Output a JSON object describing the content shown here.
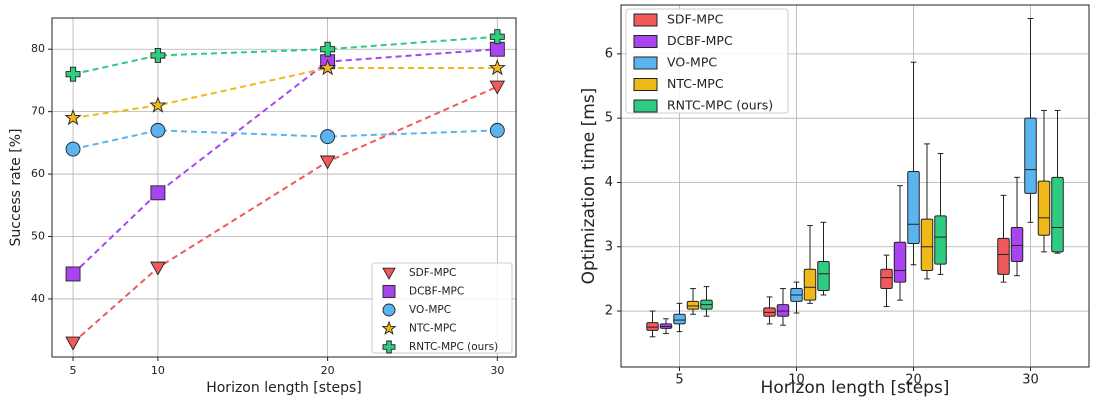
{
  "chart_data": [
    {
      "type": "line",
      "xlabel": "Horizon length [steps]",
      "ylabel": "Success rate [%]",
      "x": [
        5,
        10,
        20,
        30
      ],
      "xlim": [
        3.76,
        31.1
      ],
      "xticks": [
        5,
        10,
        20,
        30
      ],
      "ylim": [
        30.7,
        85
      ],
      "yticks": [
        40,
        50,
        60,
        70,
        80
      ],
      "grid": true,
      "legend": "lower right",
      "series": [
        {
          "name": "SDF-MPC",
          "color": "#f05a5a",
          "marker": "triangle-down",
          "values": [
            33,
            45,
            62,
            74
          ]
        },
        {
          "name": "DCBF-MPC",
          "color": "#a845f0",
          "marker": "square",
          "values": [
            44,
            57,
            78,
            80
          ]
        },
        {
          "name": "VO-MPC",
          "color": "#5ab4f0",
          "marker": "circle",
          "values": [
            64,
            67,
            66,
            67
          ]
        },
        {
          "name": "NTC-MPC",
          "color": "#f0b818",
          "marker": "star",
          "values": [
            69,
            71,
            77,
            77
          ]
        },
        {
          "name": "RNTC-MPC (ours)",
          "color": "#2ecc80",
          "marker": "plus",
          "values": [
            76,
            79,
            80,
            82
          ]
        }
      ]
    },
    {
      "type": "box",
      "xlabel": "Horizon length [steps]",
      "ylabel": "Optimization time [ms]",
      "categories": [
        "5",
        "10",
        "20",
        "30"
      ],
      "ylim": [
        1.13,
        6.76
      ],
      "yticks": [
        2,
        3,
        4,
        5,
        6
      ],
      "grid": true,
      "legend": "upper left",
      "series": [
        {
          "name": "SDF-MPC",
          "color": "#f05a5a",
          "boxes": [
            {
              "min": 1.6,
              "q1": 1.7,
              "median": 1.75,
              "q3": 1.82,
              "max": 2.0
            },
            {
              "min": 1.8,
              "q1": 1.92,
              "median": 1.98,
              "q3": 2.05,
              "max": 2.22
            },
            {
              "min": 2.07,
              "q1": 2.35,
              "median": 2.52,
              "q3": 2.65,
              "max": 2.87
            },
            {
              "min": 2.45,
              "q1": 2.57,
              "median": 2.88,
              "q3": 3.13,
              "max": 3.8
            }
          ]
        },
        {
          "name": "DCBF-MPC",
          "color": "#a845f0",
          "boxes": [
            {
              "min": 1.65,
              "q1": 1.73,
              "median": 1.76,
              "q3": 1.8,
              "max": 1.88
            },
            {
              "min": 1.78,
              "q1": 1.92,
              "median": 2.0,
              "q3": 2.1,
              "max": 2.35
            },
            {
              "min": 2.17,
              "q1": 2.45,
              "median": 2.63,
              "q3": 3.07,
              "max": 3.95
            },
            {
              "min": 2.55,
              "q1": 2.77,
              "median": 3.02,
              "q3": 3.3,
              "max": 4.08
            }
          ]
        },
        {
          "name": "VO-MPC",
          "color": "#5ab4f0",
          "boxes": [
            {
              "min": 1.68,
              "q1": 1.8,
              "median": 1.86,
              "q3": 1.95,
              "max": 2.12
            },
            {
              "min": 1.97,
              "q1": 2.15,
              "median": 2.25,
              "q3": 2.35,
              "max": 2.45
            },
            {
              "min": 2.72,
              "q1": 3.05,
              "median": 3.35,
              "q3": 4.17,
              "max": 5.87
            },
            {
              "min": 3.38,
              "q1": 3.83,
              "median": 4.2,
              "q3": 5.0,
              "max": 6.55
            }
          ]
        },
        {
          "name": "NTC-MPC",
          "color": "#f0b818",
          "boxes": [
            {
              "min": 1.95,
              "q1": 2.03,
              "median": 2.08,
              "q3": 2.15,
              "max": 2.35
            },
            {
              "min": 2.12,
              "q1": 2.17,
              "median": 2.37,
              "q3": 2.65,
              "max": 3.33
            },
            {
              "min": 2.5,
              "q1": 2.63,
              "median": 3.0,
              "q3": 3.43,
              "max": 4.6
            },
            {
              "min": 2.92,
              "q1": 3.18,
              "median": 3.45,
              "q3": 4.02,
              "max": 5.12
            }
          ]
        },
        {
          "name": "RNTC-MPC (ours)",
          "color": "#2ecc80",
          "boxes": [
            {
              "min": 1.92,
              "q1": 2.03,
              "median": 2.1,
              "q3": 2.17,
              "max": 2.38
            },
            {
              "min": 2.25,
              "q1": 2.32,
              "median": 2.58,
              "q3": 2.77,
              "max": 3.38
            },
            {
              "min": 2.57,
              "q1": 2.73,
              "median": 3.15,
              "q3": 3.48,
              "max": 4.45
            },
            {
              "min": 2.9,
              "q1": 2.92,
              "median": 3.3,
              "q3": 4.08,
              "max": 5.12
            }
          ]
        }
      ]
    }
  ]
}
